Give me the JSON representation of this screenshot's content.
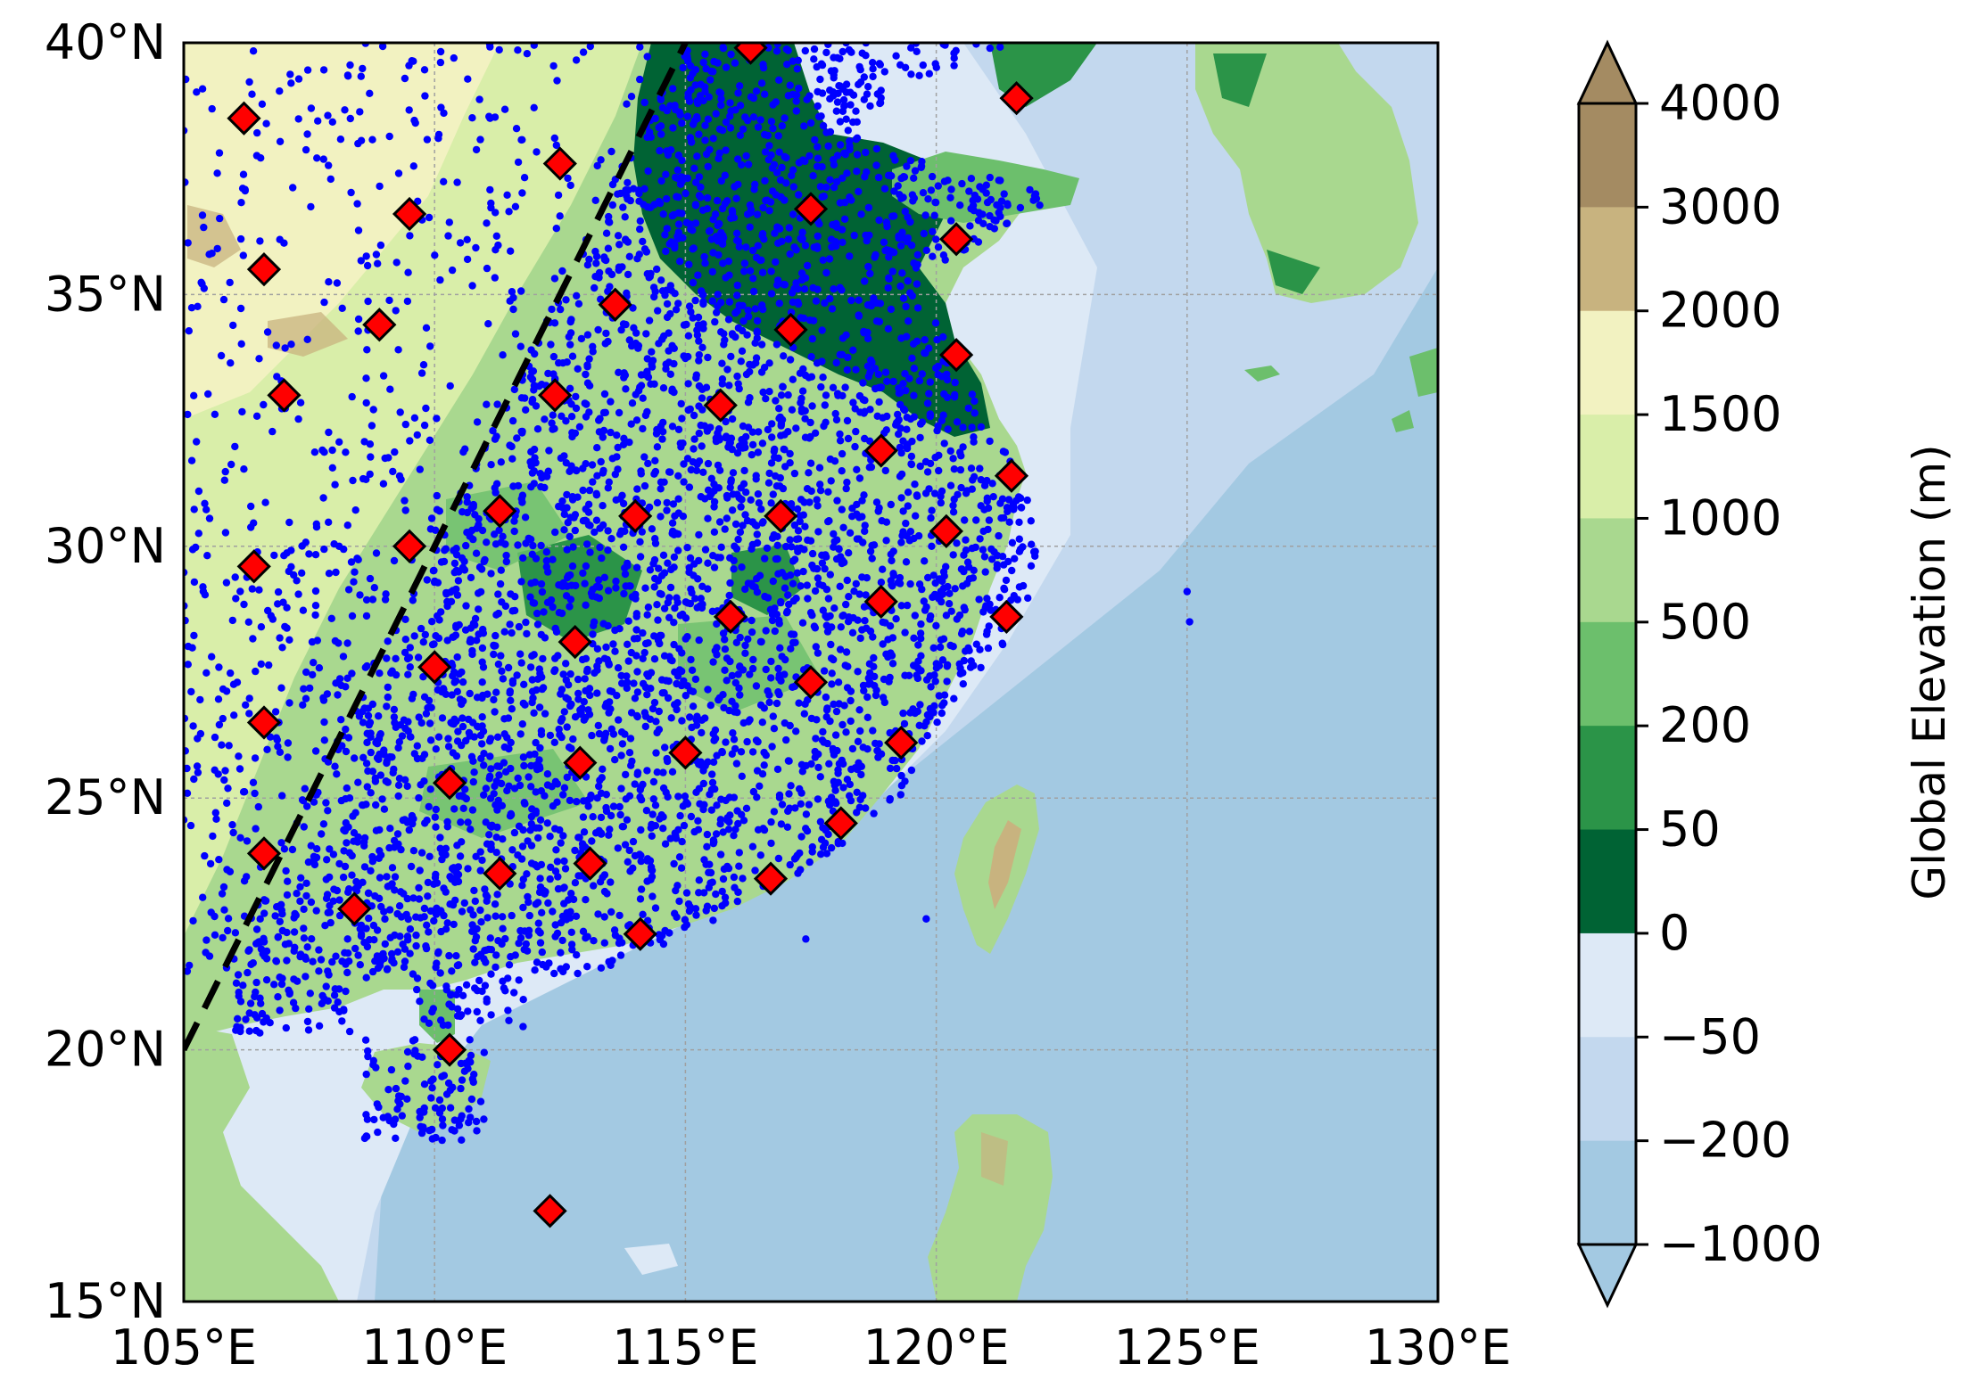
{
  "map": {
    "lon_range": [
      105,
      130
    ],
    "lat_range": [
      15,
      40
    ],
    "lon_ticks": [
      {
        "value": 105,
        "label": "105°E"
      },
      {
        "value": 110,
        "label": "110°E"
      },
      {
        "value": 115,
        "label": "115°E"
      },
      {
        "value": 120,
        "label": "120°E"
      },
      {
        "value": 125,
        "label": "125°E"
      },
      {
        "value": 130,
        "label": "130°E"
      }
    ],
    "lat_ticks": [
      {
        "value": 40,
        "label": "40°N"
      },
      {
        "value": 35,
        "label": "35°N"
      },
      {
        "value": 30,
        "label": "30°N"
      },
      {
        "value": 25,
        "label": "25°N"
      },
      {
        "value": 20,
        "label": "20°N"
      },
      {
        "value": 15,
        "label": "15°N"
      }
    ],
    "gridlines": true,
    "dashed_line": {
      "start": {
        "lon": 105,
        "lat": 20
      },
      "end": {
        "lon": 115,
        "lat": 40
      }
    },
    "sites": [
      {
        "lon": 106.2,
        "lat": 38.5
      },
      {
        "lon": 112.5,
        "lat": 37.6
      },
      {
        "lon": 116.3,
        "lat": 39.9
      },
      {
        "lon": 121.6,
        "lat": 38.9
      },
      {
        "lon": 106.6,
        "lat": 35.5
      },
      {
        "lon": 109.5,
        "lat": 36.6
      },
      {
        "lon": 117.5,
        "lat": 36.7
      },
      {
        "lon": 120.4,
        "lat": 36.1
      },
      {
        "lon": 108.9,
        "lat": 34.4
      },
      {
        "lon": 113.6,
        "lat": 34.8
      },
      {
        "lon": 117.1,
        "lat": 34.3
      },
      {
        "lon": 107.0,
        "lat": 33.0
      },
      {
        "lon": 112.4,
        "lat": 33.0
      },
      {
        "lon": 115.7,
        "lat": 32.8
      },
      {
        "lon": 120.4,
        "lat": 33.8
      },
      {
        "lon": 118.9,
        "lat": 31.9
      },
      {
        "lon": 121.5,
        "lat": 31.4
      },
      {
        "lon": 111.3,
        "lat": 30.7
      },
      {
        "lon": 114.0,
        "lat": 30.6
      },
      {
        "lon": 116.9,
        "lat": 30.6
      },
      {
        "lon": 120.2,
        "lat": 30.3
      },
      {
        "lon": 106.4,
        "lat": 29.6
      },
      {
        "lon": 109.5,
        "lat": 30.0
      },
      {
        "lon": 118.9,
        "lat": 28.9
      },
      {
        "lon": 121.4,
        "lat": 28.6
      },
      {
        "lon": 115.9,
        "lat": 28.6
      },
      {
        "lon": 112.8,
        "lat": 28.1
      },
      {
        "lon": 110.0,
        "lat": 27.6
      },
      {
        "lon": 117.5,
        "lat": 27.3
      },
      {
        "lon": 106.6,
        "lat": 26.5
      },
      {
        "lon": 119.3,
        "lat": 26.1
      },
      {
        "lon": 112.9,
        "lat": 25.7
      },
      {
        "lon": 115.0,
        "lat": 25.9
      },
      {
        "lon": 110.3,
        "lat": 25.3
      },
      {
        "lon": 118.1,
        "lat": 24.5
      },
      {
        "lon": 106.6,
        "lat": 23.9
      },
      {
        "lon": 111.3,
        "lat": 23.5
      },
      {
        "lon": 113.1,
        "lat": 23.7
      },
      {
        "lon": 116.7,
        "lat": 23.4
      },
      {
        "lon": 108.4,
        "lat": 22.8
      },
      {
        "lon": 114.1,
        "lat": 22.3
      },
      {
        "lon": 110.3,
        "lat": 20.0
      },
      {
        "lon": 112.3,
        "lat": 16.8
      }
    ]
  },
  "colorbar": {
    "label": "Global Elevation (m)",
    "levels": [
      {
        "label": "4000"
      },
      {
        "label": "3000",
        "color": "#a48b62"
      },
      {
        "label": "2000",
        "color": "#c8b37f"
      },
      {
        "label": "1500",
        "color": "#f2f2c1"
      },
      {
        "label": "1000",
        "color": "#d9eea9"
      },
      {
        "label": "500",
        "color": "#a9d88f"
      },
      {
        "label": "200",
        "color": "#6cbf6c"
      },
      {
        "label": "50",
        "color": "#2b9448"
      },
      {
        "label": "0",
        "color": "#006334"
      },
      {
        "label": "−50",
        "color": "#dde9f6"
      },
      {
        "label": "−200",
        "color": "#c3d8ee"
      },
      {
        "label": "−1000",
        "color": "#a3c9e2"
      }
    ],
    "top_extend_color": "#a48b62",
    "bottom_extend_color": "#a3c9e2"
  },
  "colors": {
    "sea_deep": "#a3c9e2",
    "sea_mid": "#c3d8ee",
    "sea_shallow": "#dde9f6",
    "land_low": "#6cbf6c",
    "land_lowland": "#006334",
    "land_mid": "#a9d88f",
    "land_high": "#d9eea9",
    "land_plateau": "#f2f2c1",
    "land_mountain": "#c8b37f",
    "station_dot": "#0000ff",
    "site_marker": "#ff0000"
  }
}
